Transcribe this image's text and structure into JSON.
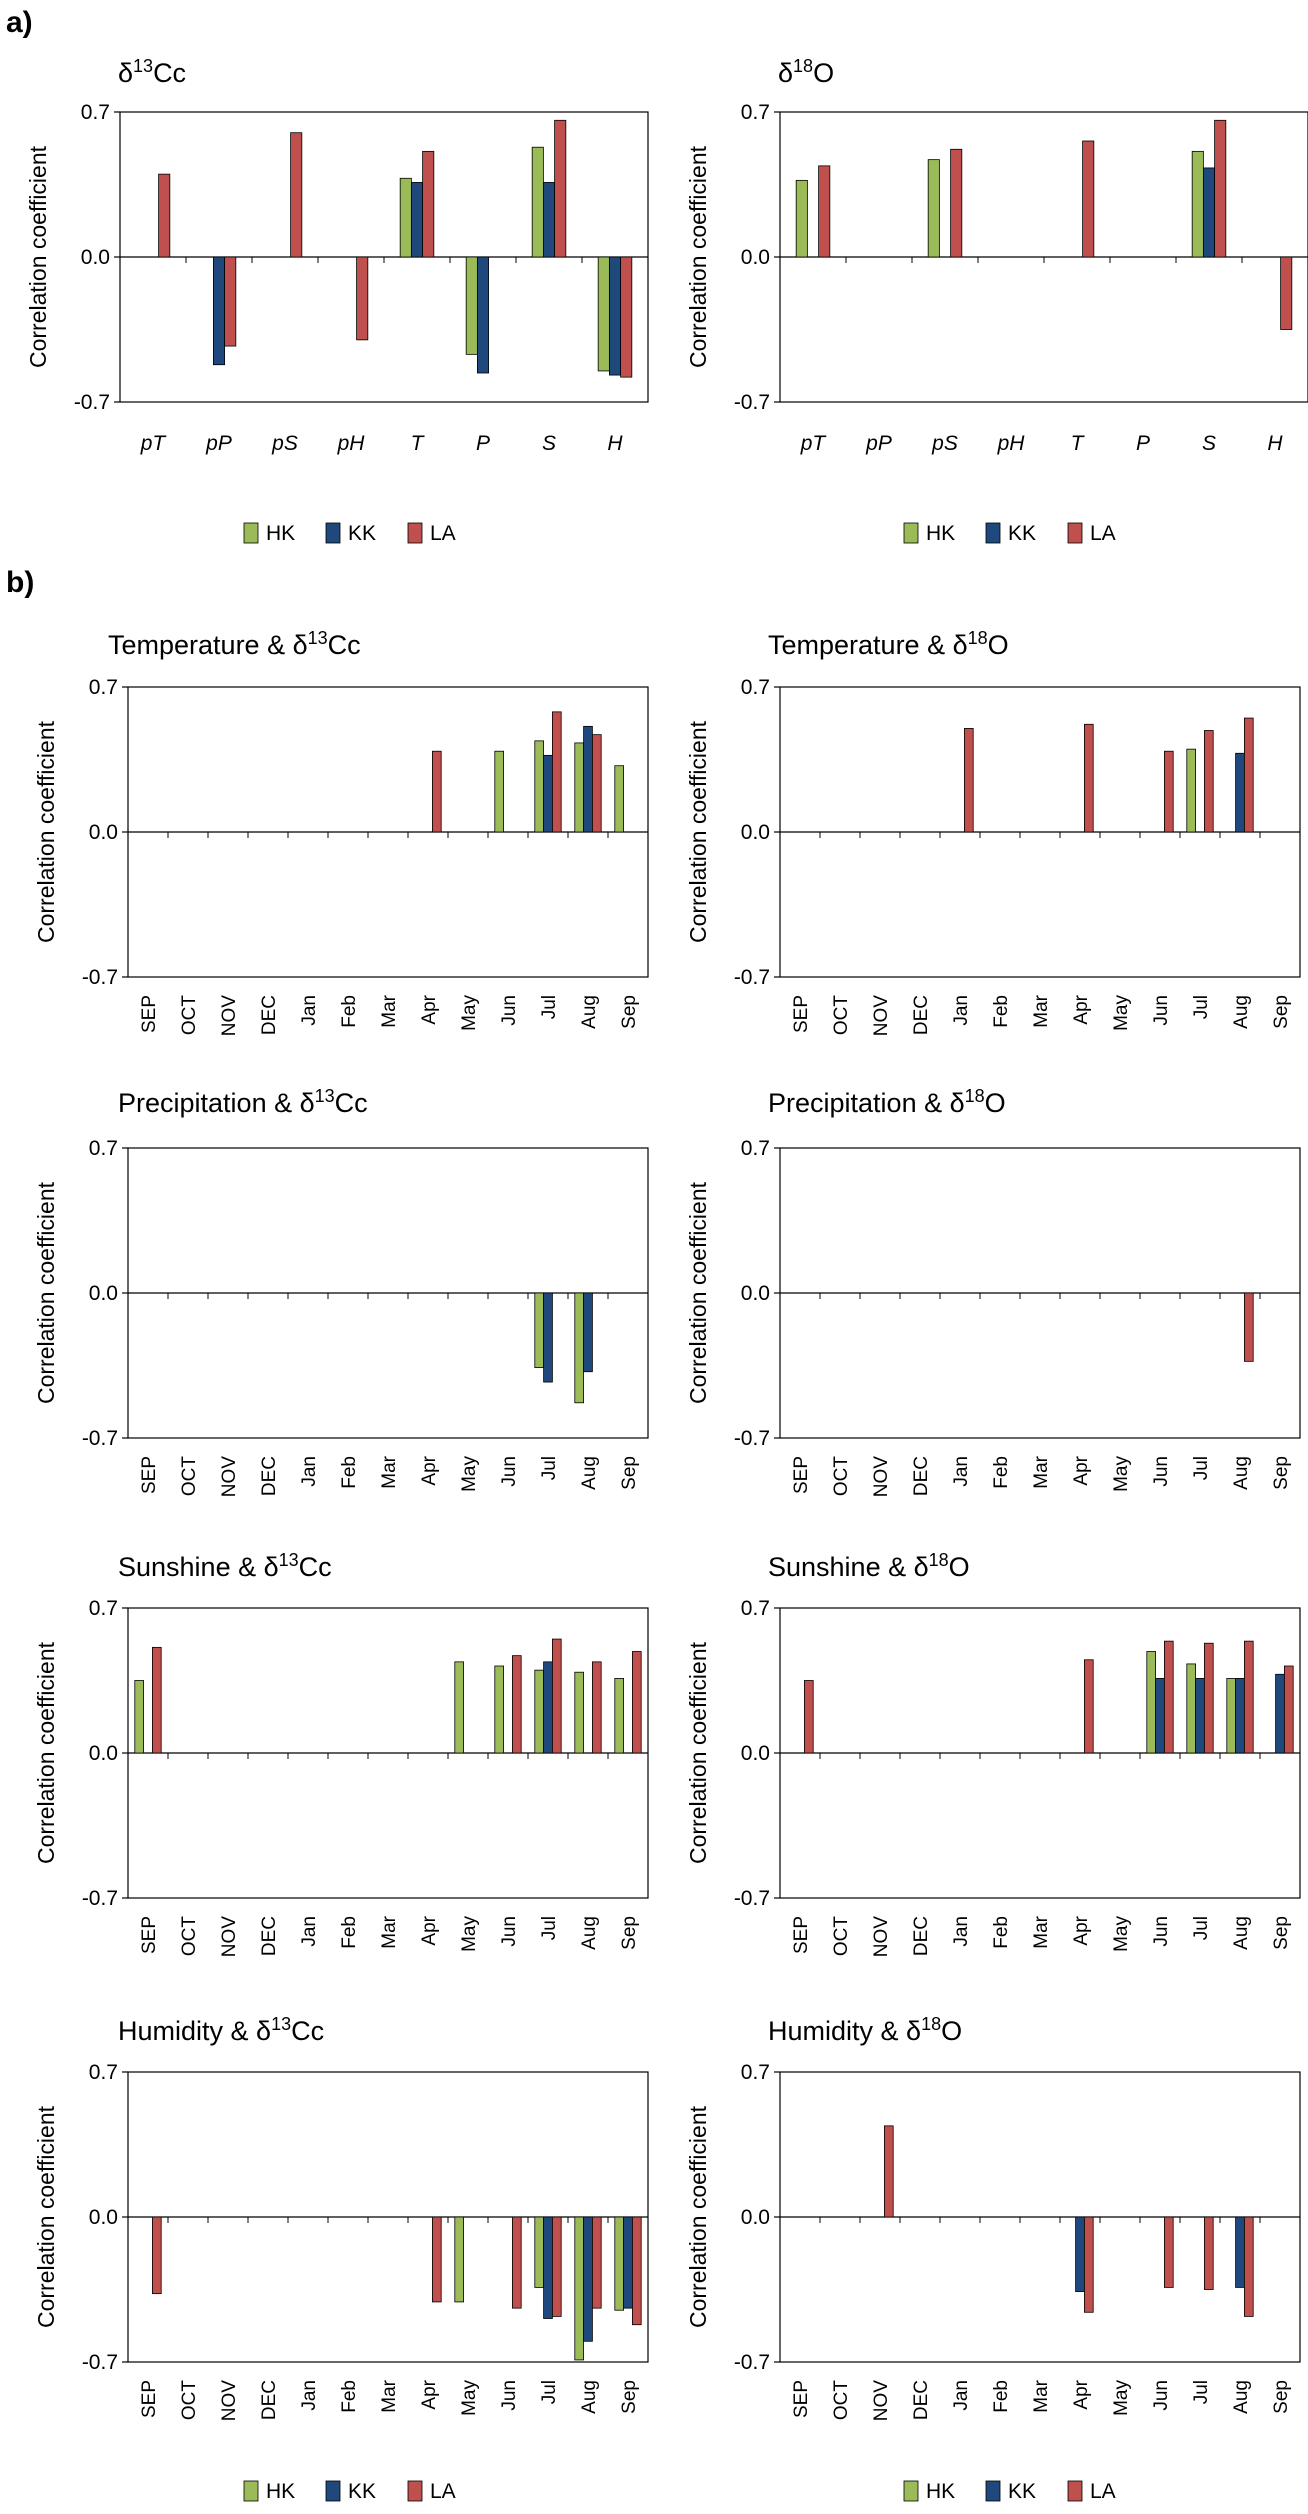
{
  "panel_a_label": "a)",
  "panel_b_label": "b)",
  "colors": {
    "HK": "#9BBB59",
    "KK": "#1F497D",
    "LA": "#C0504D"
  },
  "legend_entries": [
    "HK",
    "KK",
    "LA"
  ],
  "chart_data": [
    {
      "type": "bar",
      "title_base": "δ",
      "title_sup": "13",
      "title_rest": "Cc",
      "ylabel": "Correlation coefficient",
      "ylim": [
        -0.7,
        0.7
      ],
      "yticks": [
        "0.7",
        "0.0",
        "-0.7"
      ],
      "categories": [
        "pT",
        "pP",
        "pS",
        "pH",
        "T",
        "P",
        "S",
        "H"
      ],
      "category_style": "italic",
      "series": [
        {
          "name": "HK",
          "values": [
            null,
            null,
            null,
            null,
            0.38,
            -0.47,
            0.53,
            -0.55
          ]
        },
        {
          "name": "KK",
          "values": [
            null,
            -0.52,
            null,
            null,
            0.36,
            -0.56,
            0.36,
            -0.57
          ]
        },
        {
          "name": "LA",
          "values": [
            0.4,
            -0.43,
            0.6,
            -0.4,
            0.51,
            null,
            0.66,
            -0.58
          ]
        }
      ]
    },
    {
      "type": "bar",
      "title_base": "δ",
      "title_sup": "18",
      "title_rest": "O",
      "ylabel": "Correlation coefficient",
      "ylim": [
        -0.7,
        0.7
      ],
      "yticks": [
        "0.7",
        "0.0",
        "-0.7"
      ],
      "categories": [
        "pT",
        "pP",
        "pS",
        "pH",
        "T",
        "P",
        "S",
        "H"
      ],
      "category_style": "italic",
      "series": [
        {
          "name": "HK",
          "values": [
            0.37,
            null,
            0.47,
            null,
            null,
            null,
            0.51,
            null
          ]
        },
        {
          "name": "KK",
          "values": [
            null,
            null,
            null,
            null,
            null,
            null,
            0.43,
            null
          ]
        },
        {
          "name": "LA",
          "values": [
            0.44,
            null,
            0.52,
            null,
            0.56,
            null,
            0.66,
            -0.35
          ]
        }
      ]
    },
    {
      "type": "bar",
      "title_base": "Temperature & δ",
      "title_sup": "13",
      "title_rest": "Cc",
      "ylabel": "Correlation coefficient",
      "ylim": [
        -0.7,
        0.7
      ],
      "yticks": [
        "0.7",
        "0.0",
        "-0.7"
      ],
      "categories": [
        "SEP",
        "OCT",
        "NOV",
        "DEC",
        "Jan",
        "Feb",
        "Mar",
        "Apr",
        "May",
        "Jun",
        "Jul",
        "Aug",
        "Sep"
      ],
      "series": [
        {
          "name": "HK",
          "values": [
            null,
            null,
            null,
            null,
            null,
            null,
            null,
            null,
            null,
            0.39,
            0.44,
            0.43,
            0.32
          ]
        },
        {
          "name": "KK",
          "values": [
            null,
            null,
            null,
            null,
            null,
            null,
            null,
            null,
            null,
            null,
            0.37,
            0.51,
            null
          ]
        },
        {
          "name": "LA",
          "values": [
            null,
            null,
            null,
            null,
            null,
            null,
            null,
            0.39,
            null,
            null,
            0.58,
            0.47,
            null
          ]
        }
      ]
    },
    {
      "type": "bar",
      "title_base": "Temperature & δ",
      "title_sup": "18",
      "title_rest": "O",
      "ylabel": "Correlation coefficient",
      "ylim": [
        -0.7,
        0.7
      ],
      "yticks": [
        "0.7",
        "0.0",
        "-0.7"
      ],
      "categories": [
        "SEP",
        "OCT",
        "NOV",
        "DEC",
        "Jan",
        "Feb",
        "Mar",
        "Apr",
        "May",
        "Jun",
        "Jul",
        "Aug",
        "Sep"
      ],
      "series": [
        {
          "name": "HK",
          "values": [
            null,
            null,
            null,
            null,
            null,
            null,
            null,
            null,
            null,
            null,
            0.4,
            null,
            null
          ]
        },
        {
          "name": "KK",
          "values": [
            null,
            null,
            null,
            null,
            null,
            null,
            null,
            null,
            null,
            null,
            null,
            0.38,
            null
          ]
        },
        {
          "name": "LA",
          "values": [
            null,
            null,
            null,
            null,
            0.5,
            null,
            null,
            0.52,
            null,
            0.39,
            0.49,
            0.55,
            null
          ]
        }
      ]
    },
    {
      "type": "bar",
      "title_base": "Precipitation & δ",
      "title_sup": "13",
      "title_rest": "Cc",
      "ylabel": "Correlation coefficient",
      "ylim": [
        -0.7,
        0.7
      ],
      "yticks": [
        "0.7",
        "0.0",
        "-0.7"
      ],
      "categories": [
        "SEP",
        "OCT",
        "NOV",
        "DEC",
        "Jan",
        "Feb",
        "Mar",
        "Apr",
        "May",
        "Jun",
        "Jul",
        "Aug",
        "Sep"
      ],
      "series": [
        {
          "name": "HK",
          "values": [
            null,
            null,
            null,
            null,
            null,
            null,
            null,
            null,
            null,
            null,
            -0.36,
            -0.53,
            null
          ]
        },
        {
          "name": "KK",
          "values": [
            null,
            null,
            null,
            null,
            null,
            null,
            null,
            null,
            null,
            null,
            -0.43,
            -0.38,
            null
          ]
        },
        {
          "name": "LA",
          "values": [
            null,
            null,
            null,
            null,
            null,
            null,
            null,
            null,
            null,
            null,
            null,
            null,
            null
          ]
        }
      ]
    },
    {
      "type": "bar",
      "title_base": "Precipitation & δ",
      "title_sup": "18",
      "title_rest": "O",
      "ylabel": "Correlation coefficient",
      "ylim": [
        -0.7,
        0.7
      ],
      "yticks": [
        "0.7",
        "0.0",
        "-0.7"
      ],
      "categories": [
        "SEP",
        "OCT",
        "NOV",
        "DEC",
        "Jan",
        "Feb",
        "Mar",
        "Apr",
        "May",
        "Jun",
        "Jul",
        "Aug",
        "Sep"
      ],
      "series": [
        {
          "name": "HK",
          "values": [
            null,
            null,
            null,
            null,
            null,
            null,
            null,
            null,
            null,
            null,
            null,
            null,
            null
          ]
        },
        {
          "name": "KK",
          "values": [
            null,
            null,
            null,
            null,
            null,
            null,
            null,
            null,
            null,
            null,
            null,
            null,
            null
          ]
        },
        {
          "name": "LA",
          "values": [
            null,
            null,
            null,
            null,
            null,
            null,
            null,
            null,
            null,
            null,
            null,
            -0.33,
            null
          ]
        }
      ]
    },
    {
      "type": "bar",
      "title_base": "Sunshine & δ",
      "title_sup": "13",
      "title_rest": "Cc",
      "ylabel": "Correlation coefficient",
      "ylim": [
        -0.7,
        0.7
      ],
      "yticks": [
        "0.7",
        "0.0",
        "-0.7"
      ],
      "categories": [
        "SEP",
        "OCT",
        "NOV",
        "DEC",
        "Jan",
        "Feb",
        "Mar",
        "Apr",
        "May",
        "Jun",
        "Jul",
        "Aug",
        "Sep"
      ],
      "series": [
        {
          "name": "HK",
          "values": [
            0.35,
            null,
            null,
            null,
            null,
            null,
            null,
            null,
            0.44,
            0.42,
            0.4,
            0.39,
            0.36
          ]
        },
        {
          "name": "KK",
          "values": [
            null,
            null,
            null,
            null,
            null,
            null,
            null,
            null,
            null,
            null,
            0.44,
            null,
            null
          ]
        },
        {
          "name": "LA",
          "values": [
            0.51,
            null,
            null,
            null,
            null,
            null,
            null,
            null,
            null,
            0.47,
            0.55,
            0.44,
            0.49
          ]
        }
      ]
    },
    {
      "type": "bar",
      "title_base": "Sunshine & δ",
      "title_sup": "18",
      "title_rest": "O",
      "ylabel": "Correlation coefficient",
      "ylim": [
        -0.7,
        0.7
      ],
      "yticks": [
        "0.7",
        "0.0",
        "-0.7"
      ],
      "categories": [
        "SEP",
        "OCT",
        "NOV",
        "DEC",
        "Jan",
        "Feb",
        "Mar",
        "Apr",
        "May",
        "Jun",
        "Jul",
        "Aug",
        "Sep"
      ],
      "series": [
        {
          "name": "HK",
          "values": [
            null,
            null,
            null,
            null,
            null,
            null,
            null,
            null,
            null,
            0.49,
            0.43,
            0.36,
            null
          ]
        },
        {
          "name": "KK",
          "values": [
            null,
            null,
            null,
            null,
            null,
            null,
            null,
            null,
            null,
            0.36,
            0.36,
            0.36,
            0.38
          ]
        },
        {
          "name": "LA",
          "values": [
            0.35,
            null,
            null,
            null,
            null,
            null,
            null,
            0.45,
            null,
            0.54,
            0.53,
            0.54,
            0.42
          ]
        }
      ]
    },
    {
      "type": "bar",
      "title_base": "Humidity & δ",
      "title_sup": "13",
      "title_rest": "Cc",
      "ylabel": "Correlation coefficient",
      "ylim": [
        -0.7,
        0.7
      ],
      "yticks": [
        "0.7",
        "0.0",
        "-0.7"
      ],
      "categories": [
        "SEP",
        "OCT",
        "NOV",
        "DEC",
        "Jan",
        "Feb",
        "Mar",
        "Apr",
        "May",
        "Jun",
        "Jul",
        "Aug",
        "Sep"
      ],
      "series": [
        {
          "name": "HK",
          "values": [
            null,
            null,
            null,
            null,
            null,
            null,
            null,
            null,
            -0.41,
            null,
            -0.34,
            -0.69,
            -0.45
          ]
        },
        {
          "name": "KK",
          "values": [
            null,
            null,
            null,
            null,
            null,
            null,
            null,
            null,
            null,
            null,
            -0.49,
            -0.6,
            -0.44
          ]
        },
        {
          "name": "LA",
          "values": [
            -0.37,
            null,
            null,
            null,
            null,
            null,
            null,
            -0.41,
            null,
            -0.44,
            -0.48,
            -0.44,
            -0.52
          ]
        }
      ]
    },
    {
      "type": "bar",
      "title_base": "Humidity & δ",
      "title_sup": "18",
      "title_rest": "O",
      "ylabel": "Correlation coefficient",
      "ylim": [
        -0.7,
        0.7
      ],
      "yticks": [
        "0.7",
        "0.0",
        "-0.7"
      ],
      "categories": [
        "SEP",
        "OCT",
        "NOV",
        "DEC",
        "Jan",
        "Feb",
        "Mar",
        "Apr",
        "May",
        "Jun",
        "Jul",
        "Aug",
        "Sep"
      ],
      "series": [
        {
          "name": "HK",
          "values": [
            null,
            null,
            null,
            null,
            null,
            null,
            null,
            null,
            null,
            null,
            null,
            null,
            null
          ]
        },
        {
          "name": "KK",
          "values": [
            null,
            null,
            null,
            null,
            null,
            null,
            null,
            -0.36,
            null,
            null,
            null,
            -0.34,
            null
          ]
        },
        {
          "name": "LA",
          "values": [
            null,
            null,
            0.44,
            null,
            null,
            null,
            null,
            -0.46,
            null,
            -0.34,
            -0.35,
            -0.48,
            null
          ]
        }
      ]
    }
  ]
}
